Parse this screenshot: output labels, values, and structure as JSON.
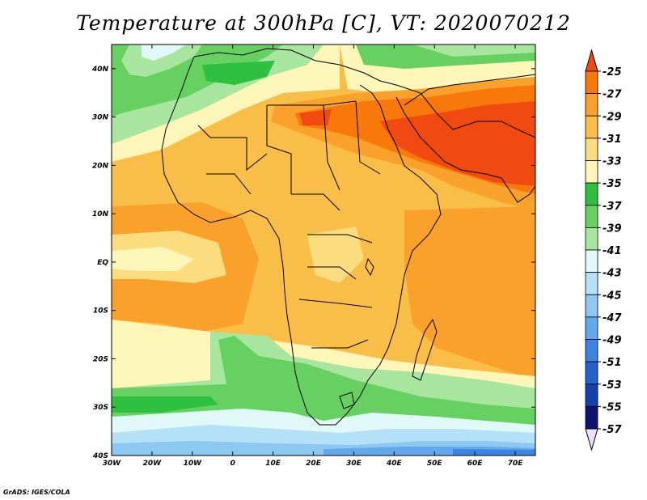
{
  "title": "Temperature at 300hPa [C], VT: 2020070212",
  "footer": "GrADS: IGES/COLA",
  "map": {
    "lon_range": [
      -30,
      75
    ],
    "lat_range": [
      -40,
      45
    ],
    "lat_ticks": [
      {
        "value": 40,
        "label": "40N"
      },
      {
        "value": 30,
        "label": "30N"
      },
      {
        "value": 20,
        "label": "20N"
      },
      {
        "value": 10,
        "label": "10N"
      },
      {
        "value": 0,
        "label": "EQ"
      },
      {
        "value": -10,
        "label": "10S"
      },
      {
        "value": -20,
        "label": "20S"
      },
      {
        "value": -30,
        "label": "30S"
      },
      {
        "value": -40,
        "label": "40S"
      }
    ],
    "lon_ticks": [
      {
        "value": -30,
        "label": "30W"
      },
      {
        "value": -20,
        "label": "20W"
      },
      {
        "value": -10,
        "label": "10W"
      },
      {
        "value": 0,
        "label": "0"
      },
      {
        "value": 10,
        "label": "10E"
      },
      {
        "value": 20,
        "label": "20E"
      },
      {
        "value": 30,
        "label": "30E"
      },
      {
        "value": 40,
        "label": "40E"
      },
      {
        "value": 50,
        "label": "50E"
      },
      {
        "value": 60,
        "label": "60E"
      },
      {
        "value": 70,
        "label": "70E"
      }
    ]
  },
  "colorbar": {
    "levels": [
      "-25",
      "-27",
      "-29",
      "-31",
      "-33",
      "-35",
      "-37",
      "-39",
      "-41",
      "-43",
      "-45",
      "-47",
      "-49",
      "-51",
      "-53",
      "-55",
      "-57"
    ],
    "colors": [
      "#f04a10",
      "#f8780a",
      "#f9a12a",
      "#f9be48",
      "#fbdc7e",
      "#fcf6b8",
      "#30c040",
      "#66d060",
      "#a8e6a0",
      "#e0f8f8",
      "#b4e0f8",
      "#8cc8f0",
      "#64a8ec",
      "#3c84e4",
      "#2462d0",
      "#1440b0",
      "#0c1470"
    ],
    "top_color": "#f04a10",
    "bottom_color": "#e8e0ff"
  }
}
